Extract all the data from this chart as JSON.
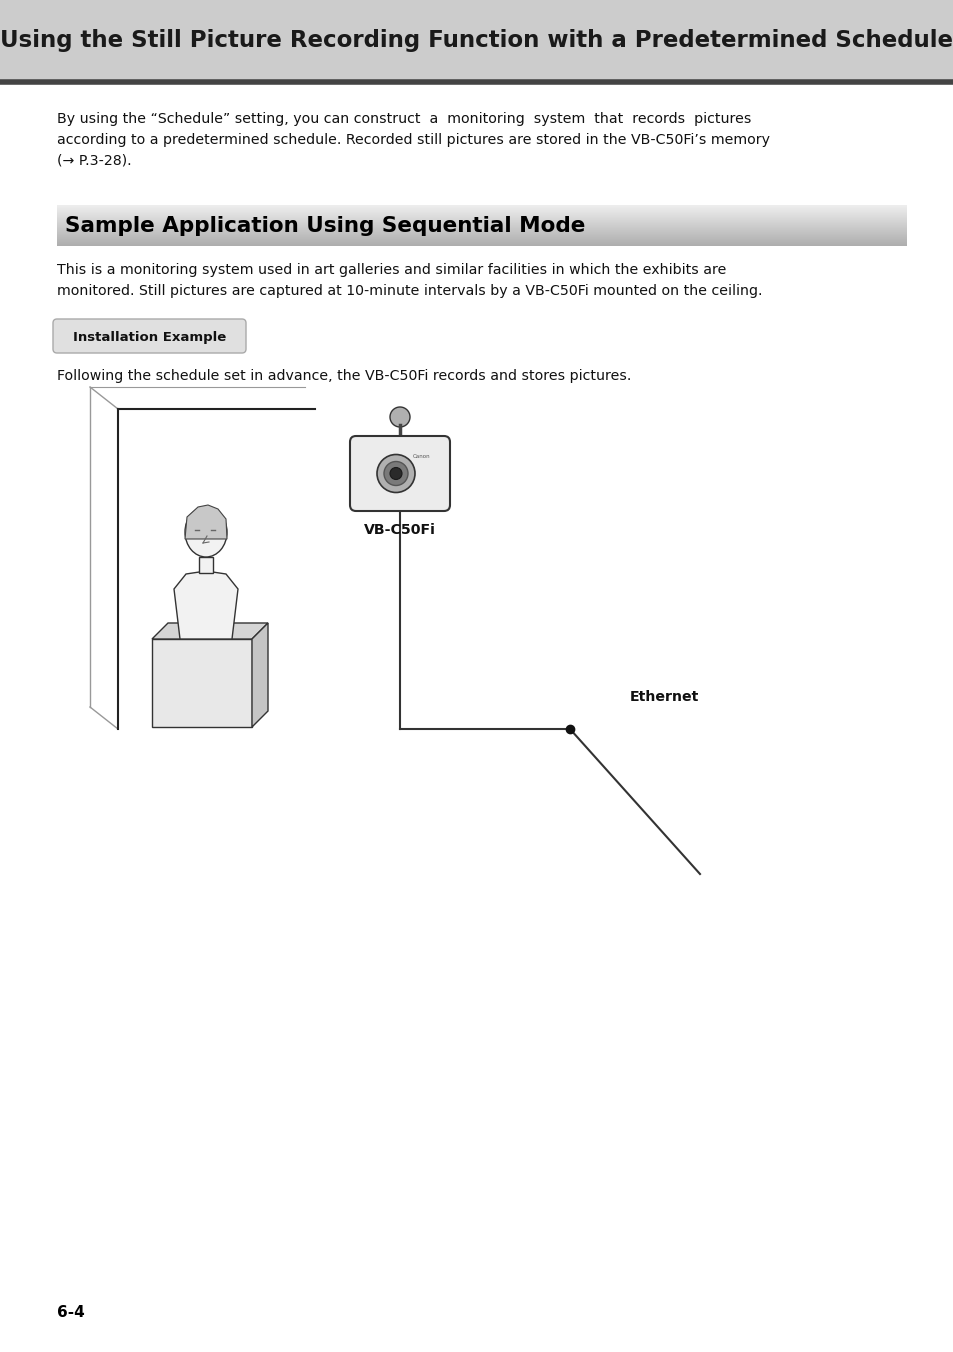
{
  "page_bg": "#ffffff",
  "header_bg": "#cccccc",
  "header_text": "Using the Still Picture Recording Function with a Predetermined Schedule",
  "header_text_color": "#1a1a1a",
  "header_line_color": "#555555",
  "section_title": "Sample Application Using Sequential Mode",
  "section_title_color": "#000000",
  "body_text_color": "#111111",
  "para1_line1": "By using the “Schedule” setting, you can construct  a  monitoring  system  that  records  pictures",
  "para1_line2": "according to a predetermined schedule. Recorded still pictures are stored in the VB-C50Fi’s memory",
  "para1_line3": "(→ P.3-28).",
  "section_body_line1": "This is a monitoring system used in art galleries and similar facilities in which the exhibits are",
  "section_body_line2": "monitored. Still pictures are captured at 10-minute intervals by a VB-C50Fi mounted on the ceiling.",
  "button_text": "Installation Example",
  "button_bg": "#e0e0e0",
  "button_border": "#aaaaaa",
  "following_text": "Following the schedule set in advance, the VB-C50Fi records and stores pictures.",
  "vb_label": "VB-C50Fi",
  "ethernet_label": "Ethernet",
  "page_number": "6-4",
  "page_number_color": "#000000",
  "dpi": 100,
  "fig_w": 9.54,
  "fig_h": 13.52,
  "pw": 954,
  "ph": 1352
}
